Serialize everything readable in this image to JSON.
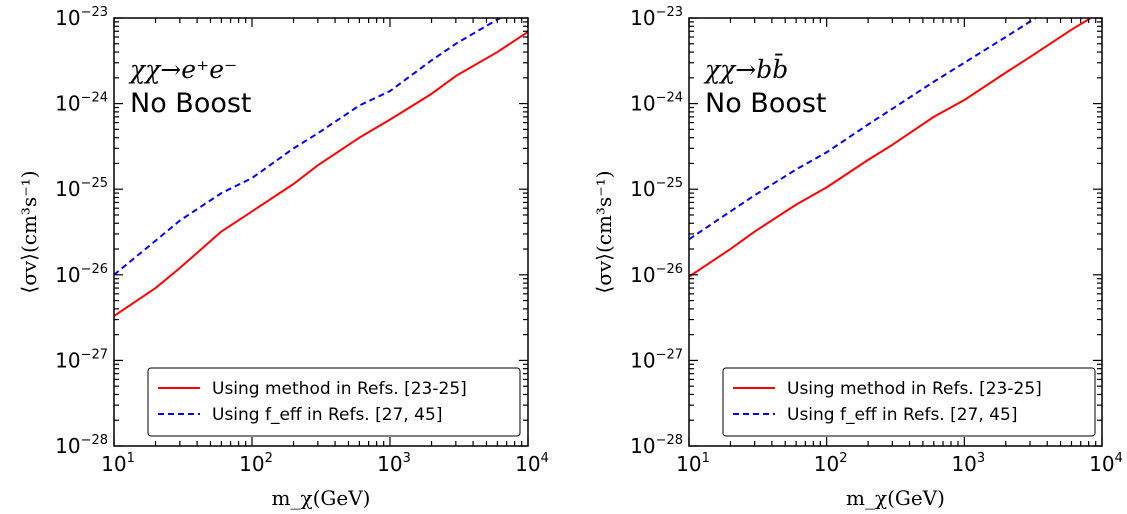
{
  "chart_data": [
    {
      "type": "line",
      "annotation_title": "χχ→e⁺e⁻",
      "annotation_subtitle": "No Boost",
      "xlabel": "m_χ(GeV)",
      "ylabel": "⟨σv⟩(cm³s⁻¹)",
      "xscale": "log",
      "yscale": "log",
      "xlim": [
        10,
        10000
      ],
      "ylim": [
        1e-28,
        1e-23
      ],
      "x_ticks": [
        "10^1",
        "10^2",
        "10^3",
        "10^4"
      ],
      "y_ticks": [
        "10^-28",
        "10^-27",
        "10^-26",
        "10^-25",
        "10^-24",
        "10^-23"
      ],
      "grid": false,
      "legend_position": "bottom-right",
      "series": [
        {
          "name": "Using method in Refs. [23-25]",
          "color": "#ff0000",
          "style": "solid",
          "x": [
            10,
            20,
            30,
            60,
            100,
            200,
            300,
            600,
            1000,
            2000,
            3000,
            6000,
            10000
          ],
          "y": [
            3.3e-27,
            7e-27,
            1.2e-26,
            3.2e-26,
            5.5e-26,
            1.15e-25,
            1.9e-25,
            4e-25,
            6.5e-25,
            1.3e-24,
            2.1e-24,
            4e-24,
            6.9e-24
          ]
        },
        {
          "name": "Using f_eff in Refs. [27, 45]",
          "color": "#0000ff",
          "style": "dashed",
          "x": [
            10,
            20,
            30,
            60,
            100,
            200,
            300,
            600,
            1000,
            2000,
            3000,
            6000,
            6300
          ],
          "y": [
            1e-26,
            2.5e-26,
            4.3e-26,
            9e-26,
            1.35e-25,
            3e-25,
            4.5e-25,
            9.5e-25,
            1.4e-24,
            3.2e-24,
            5e-24,
            9.6e-24,
            1e-23
          ]
        }
      ]
    },
    {
      "type": "line",
      "annotation_title": "χχ→bb̄",
      "annotation_subtitle": "No Boost",
      "xlabel": "m_χ(GeV)",
      "ylabel": "⟨σv⟩(cm³s⁻¹)",
      "xscale": "log",
      "yscale": "log",
      "xlim": [
        10,
        10000
      ],
      "ylim": [
        1e-28,
        1e-23
      ],
      "x_ticks": [
        "10^1",
        "10^2",
        "10^3",
        "10^4"
      ],
      "y_ticks": [
        "10^-28",
        "10^-27",
        "10^-26",
        "10^-25",
        "10^-24",
        "10^-23"
      ],
      "grid": false,
      "legend_position": "bottom-right",
      "series": [
        {
          "name": "Using method in Refs. [23-25]",
          "color": "#ff0000",
          "style": "solid",
          "x": [
            10,
            20,
            30,
            60,
            100,
            200,
            300,
            600,
            1000,
            2000,
            3000,
            6000,
            8300
          ],
          "y": [
            9.5e-27,
            2e-26,
            3.2e-26,
            6.6e-26,
            1.05e-25,
            2.2e-25,
            3.3e-25,
            7e-25,
            1.1e-24,
            2.3e-24,
            3.5e-24,
            7.3e-24,
            1e-23
          ]
        },
        {
          "name": "Using f_eff in Refs. [27, 45]",
          "color": "#0000ff",
          "style": "dashed",
          "x": [
            10,
            20,
            30,
            60,
            100,
            200,
            300,
            600,
            1000,
            2000,
            3300
          ],
          "y": [
            2.6e-26,
            5.5e-26,
            8.5e-26,
            1.7e-25,
            2.7e-25,
            5.7e-25,
            8.7e-25,
            1.8e-24,
            3e-24,
            6e-24,
            1e-23
          ]
        }
      ]
    }
  ]
}
